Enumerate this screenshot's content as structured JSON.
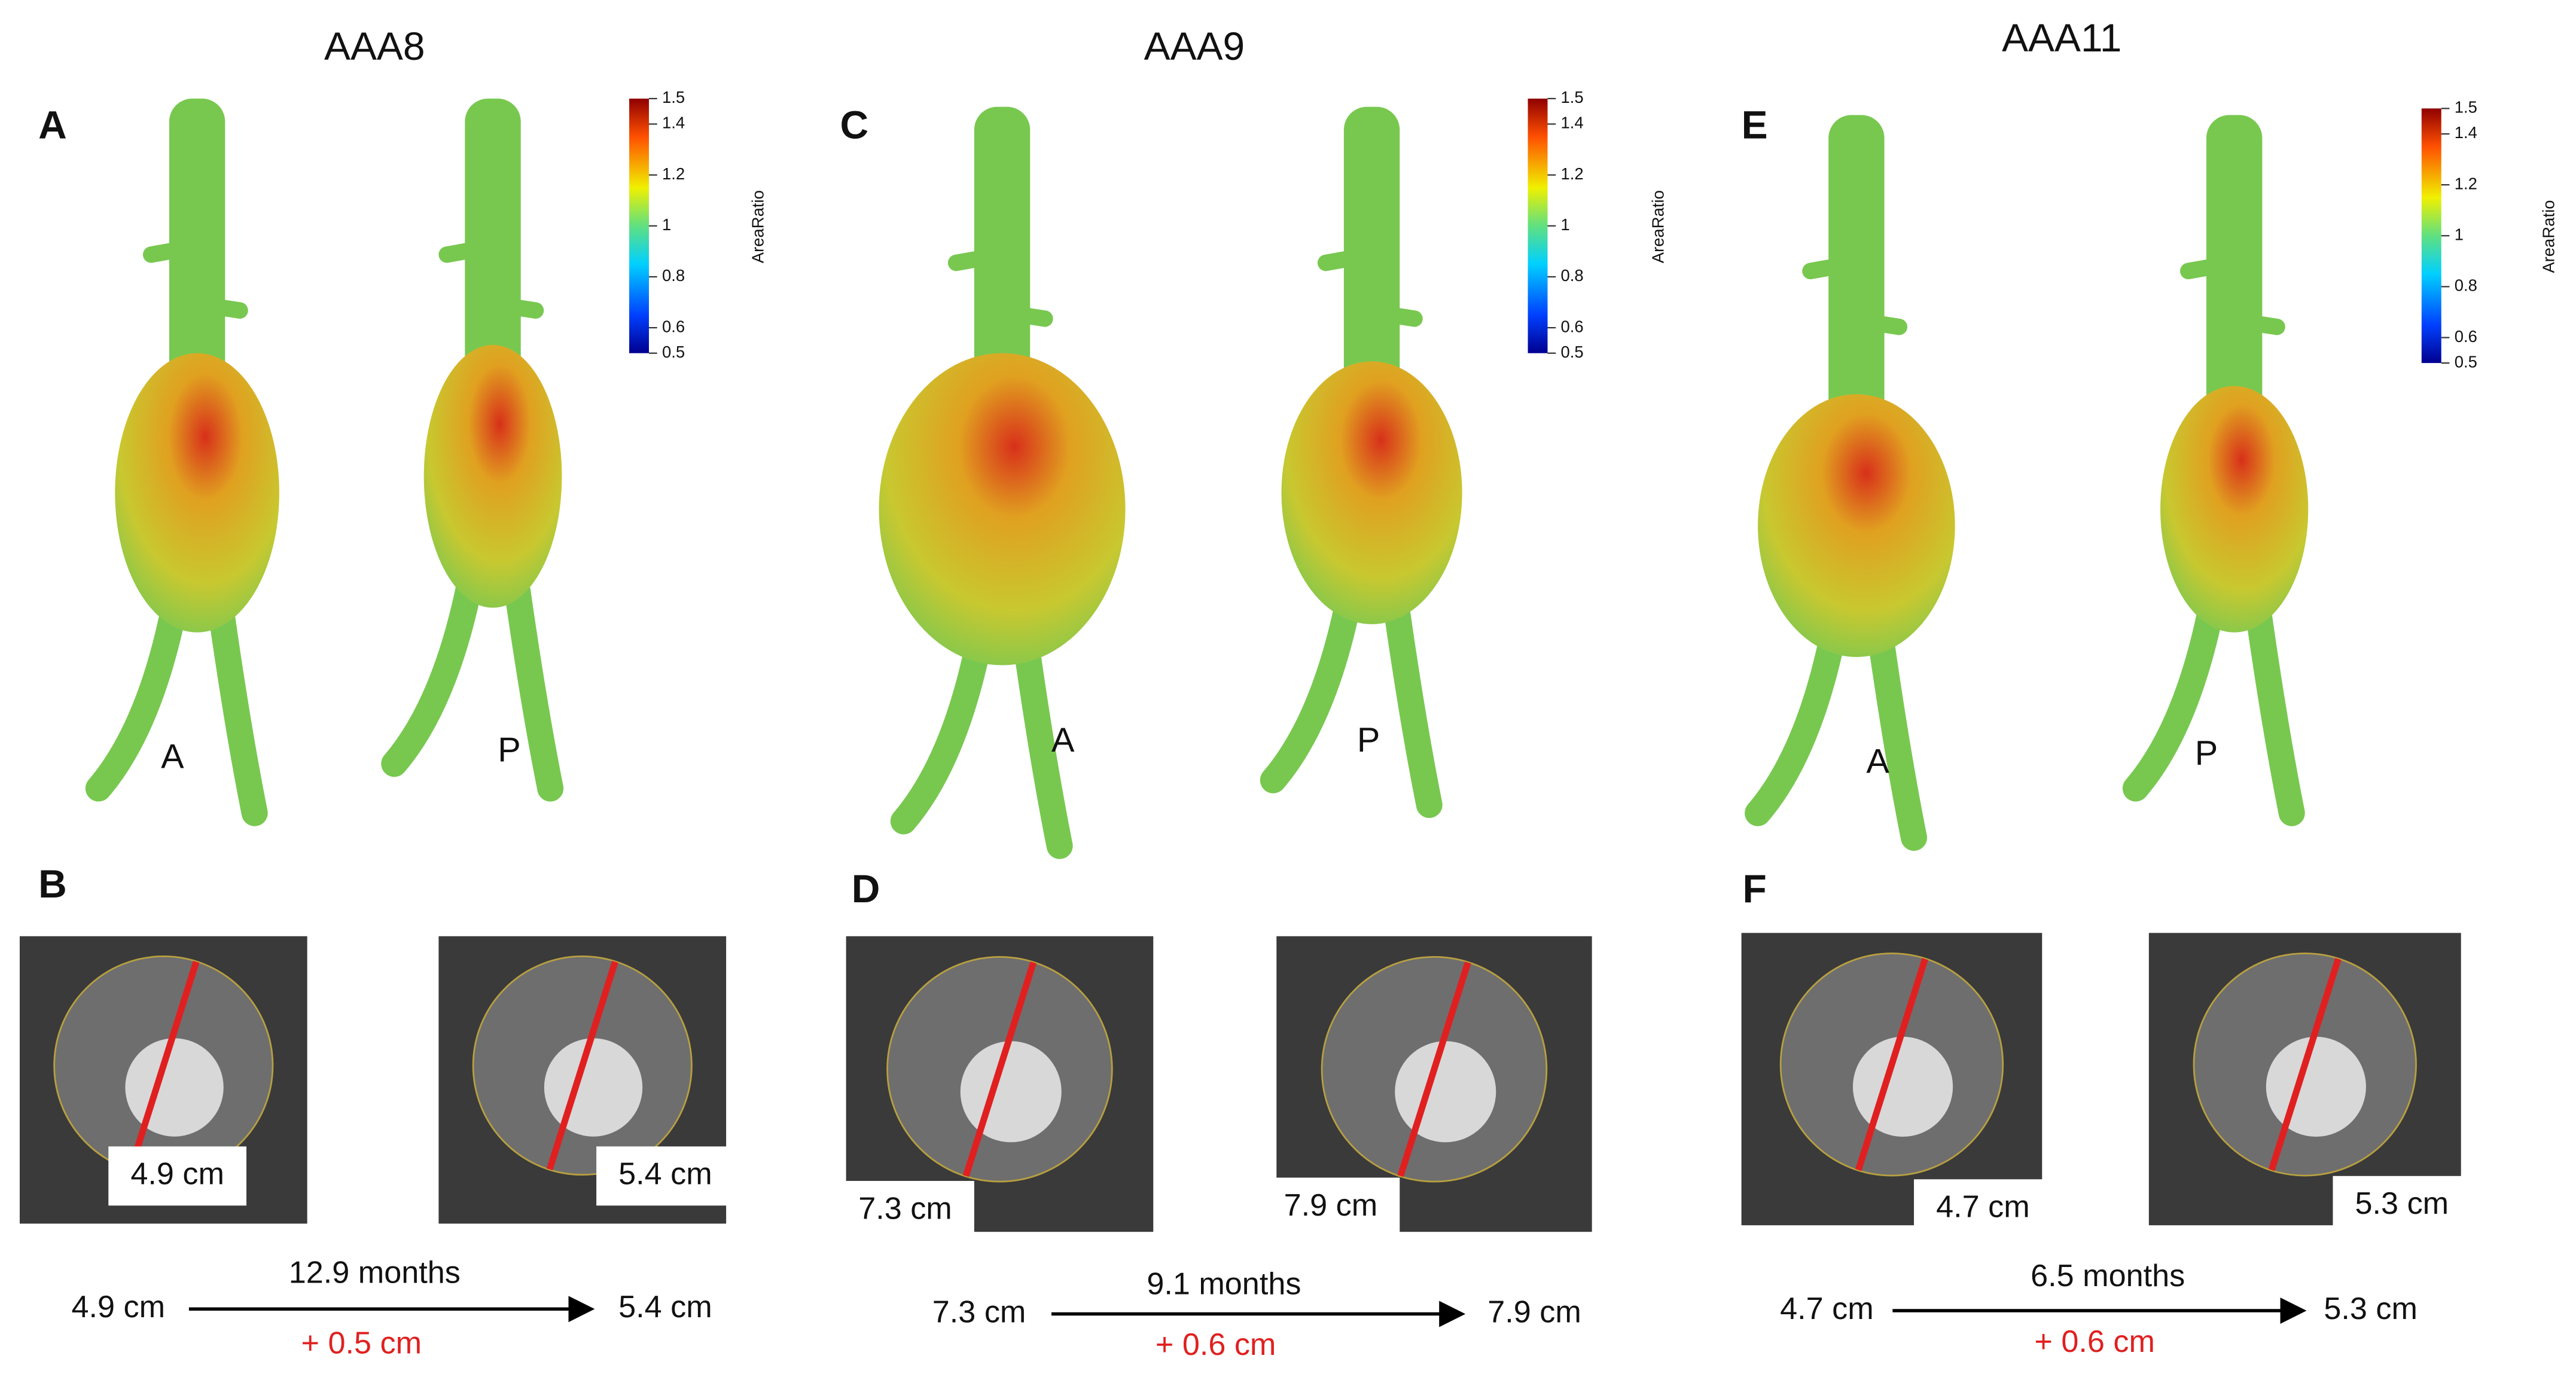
{
  "columns": [
    {
      "title": "AAA8",
      "top_panel": "A",
      "bottom_panel": "B",
      "views": [
        "A",
        "P"
      ],
      "colorbar": {
        "label": "AreaRatio",
        "ticks": [
          1.5,
          1.4,
          1.2,
          1,
          0.8,
          0.6,
          0.5
        ]
      },
      "ct_labels": [
        "4.9 cm",
        "5.4 cm"
      ],
      "timeline": {
        "start": "4.9 cm",
        "duration": "12.9 months",
        "end": "5.4 cm",
        "change": "+ 0.5 cm"
      }
    },
    {
      "title": "AAA9",
      "top_panel": "C",
      "bottom_panel": "D",
      "views": [
        "A",
        "P"
      ],
      "colorbar": {
        "label": "AreaRatio",
        "ticks": [
          1.5,
          1.4,
          1.2,
          1,
          0.8,
          0.6,
          0.5
        ]
      },
      "ct_labels": [
        "7.3 cm",
        "7.9 cm"
      ],
      "timeline": {
        "start": "7.3 cm",
        "duration": "9.1 months",
        "end": "7.9 cm",
        "change": "+ 0.6 cm"
      }
    },
    {
      "title": "AAA11",
      "top_panel": "E",
      "bottom_panel": "F",
      "views": [
        "A",
        "P"
      ],
      "colorbar": {
        "label": "AreaRatio",
        "ticks": [
          1.5,
          1.4,
          1.2,
          1,
          0.8,
          0.6,
          0.5
        ]
      },
      "ct_labels": [
        "4.7 cm",
        "5.3 cm"
      ],
      "timeline": {
        "start": "4.7 cm",
        "duration": "6.5 months",
        "end": "5.3 cm",
        "change": "+ 0.6 cm"
      }
    }
  ]
}
